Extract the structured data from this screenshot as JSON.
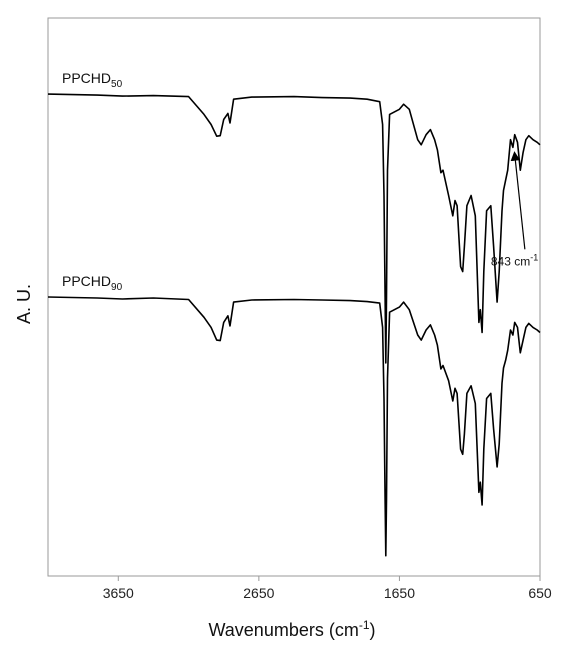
{
  "chart_data": {
    "type": "line",
    "xlabel": "Wavenumbers (cm",
    "xlabel_sup": "-1",
    "xlabel_tail": ")",
    "ylabel": "A. U.",
    "xlim": [
      4150,
      650
    ],
    "x_reversed": true,
    "ylim": [
      -0.55,
      0.55
    ],
    "grid": false,
    "legend": "none",
    "line_color": "#000000",
    "xticks": [
      3650,
      2650,
      1650,
      650
    ],
    "xtick_labels": [
      "3650",
      "2650",
      "1650",
      "650"
    ],
    "series": [
      {
        "name_main": "PPCHD",
        "name_sub": "50",
        "points": [
          [
            4150,
            0.4
          ],
          [
            3800,
            0.398
          ],
          [
            3620,
            0.396
          ],
          [
            3400,
            0.397
          ],
          [
            3150,
            0.395
          ],
          [
            3040,
            0.36
          ],
          [
            2990,
            0.34
          ],
          [
            2950,
            0.317
          ],
          [
            2925,
            0.318
          ],
          [
            2900,
            0.35
          ],
          [
            2870,
            0.362
          ],
          [
            2855,
            0.343
          ],
          [
            2830,
            0.39
          ],
          [
            2700,
            0.394
          ],
          [
            2400,
            0.395
          ],
          [
            2200,
            0.393
          ],
          [
            2000,
            0.392
          ],
          [
            1880,
            0.39
          ],
          [
            1790,
            0.385
          ],
          [
            1770,
            0.34
          ],
          [
            1760,
            0.2
          ],
          [
            1752,
            0.0
          ],
          [
            1747,
            -0.13
          ],
          [
            1742,
            0.0
          ],
          [
            1735,
            0.25
          ],
          [
            1720,
            0.36
          ],
          [
            1650,
            0.37
          ],
          [
            1620,
            0.38
          ],
          [
            1580,
            0.37
          ],
          [
            1520,
            0.31
          ],
          [
            1495,
            0.3
          ],
          [
            1460,
            0.32
          ],
          [
            1430,
            0.33
          ],
          [
            1400,
            0.31
          ],
          [
            1380,
            0.29
          ],
          [
            1355,
            0.245
          ],
          [
            1340,
            0.25
          ],
          [
            1300,
            0.2
          ],
          [
            1270,
            0.16
          ],
          [
            1255,
            0.19
          ],
          [
            1240,
            0.18
          ],
          [
            1215,
            0.06
          ],
          [
            1200,
            0.05
          ],
          [
            1188,
            0.1
          ],
          [
            1170,
            0.18
          ],
          [
            1140,
            0.2
          ],
          [
            1110,
            0.16
          ],
          [
            1085,
            -0.05
          ],
          [
            1075,
            -0.025
          ],
          [
            1062,
            -0.07
          ],
          [
            1050,
            0.05
          ],
          [
            1030,
            0.17
          ],
          [
            1000,
            0.18
          ],
          [
            980,
            0.1
          ],
          [
            955,
            -0.01
          ],
          [
            940,
            0.05
          ],
          [
            920,
            0.17
          ],
          [
            910,
            0.21
          ],
          [
            895,
            0.23
          ],
          [
            880,
            0.25
          ],
          [
            860,
            0.31
          ],
          [
            843,
            0.295
          ],
          [
            830,
            0.32
          ],
          [
            810,
            0.305
          ],
          [
            790,
            0.25
          ],
          [
            770,
            0.285
          ],
          [
            750,
            0.31
          ],
          [
            730,
            0.318
          ],
          [
            700,
            0.31
          ],
          [
            670,
            0.305
          ],
          [
            650,
            0.3
          ]
        ]
      },
      {
        "name_main": "PPCHD",
        "name_sub": "90",
        "points": [
          [
            4150,
            0.0
          ],
          [
            3800,
            -0.002
          ],
          [
            3620,
            -0.004
          ],
          [
            3400,
            -0.002
          ],
          [
            3150,
            -0.005
          ],
          [
            3040,
            -0.04
          ],
          [
            2990,
            -0.06
          ],
          [
            2950,
            -0.085
          ],
          [
            2925,
            -0.086
          ],
          [
            2900,
            -0.05
          ],
          [
            2870,
            -0.037
          ],
          [
            2855,
            -0.057
          ],
          [
            2830,
            -0.01
          ],
          [
            2700,
            -0.006
          ],
          [
            2400,
            -0.005
          ],
          [
            2200,
            -0.006
          ],
          [
            2000,
            -0.007
          ],
          [
            1880,
            -0.009
          ],
          [
            1790,
            -0.012
          ],
          [
            1770,
            -0.06
          ],
          [
            1760,
            -0.2
          ],
          [
            1752,
            -0.4
          ],
          [
            1747,
            -0.51
          ],
          [
            1742,
            -0.4
          ],
          [
            1735,
            -0.16
          ],
          [
            1720,
            -0.03
          ],
          [
            1650,
            -0.02
          ],
          [
            1620,
            -0.01
          ],
          [
            1580,
            -0.025
          ],
          [
            1520,
            -0.075
          ],
          [
            1495,
            -0.085
          ],
          [
            1460,
            -0.065
          ],
          [
            1430,
            -0.055
          ],
          [
            1400,
            -0.075
          ],
          [
            1380,
            -0.095
          ],
          [
            1355,
            -0.142
          ],
          [
            1340,
            -0.135
          ],
          [
            1300,
            -0.165
          ],
          [
            1270,
            -0.205
          ],
          [
            1255,
            -0.18
          ],
          [
            1240,
            -0.19
          ],
          [
            1215,
            -0.3
          ],
          [
            1200,
            -0.31
          ],
          [
            1188,
            -0.27
          ],
          [
            1170,
            -0.19
          ],
          [
            1140,
            -0.175
          ],
          [
            1110,
            -0.21
          ],
          [
            1085,
            -0.385
          ],
          [
            1075,
            -0.365
          ],
          [
            1062,
            -0.41
          ],
          [
            1050,
            -0.3
          ],
          [
            1030,
            -0.2
          ],
          [
            1000,
            -0.19
          ],
          [
            980,
            -0.26
          ],
          [
            955,
            -0.335
          ],
          [
            940,
            -0.29
          ],
          [
            920,
            -0.17
          ],
          [
            910,
            -0.14
          ],
          [
            895,
            -0.125
          ],
          [
            880,
            -0.105
          ],
          [
            860,
            -0.065
          ],
          [
            843,
            -0.075
          ],
          [
            830,
            -0.05
          ],
          [
            810,
            -0.06
          ],
          [
            790,
            -0.11
          ],
          [
            770,
            -0.085
          ],
          [
            750,
            -0.06
          ],
          [
            730,
            -0.052
          ],
          [
            700,
            -0.06
          ],
          [
            670,
            -0.065
          ],
          [
            650,
            -0.07
          ]
        ]
      }
    ],
    "annotations": [
      {
        "text_main": "843 cm",
        "text_sup": "-1",
        "x": 843,
        "y_start": 0.09,
        "y_end": 0.29
      }
    ]
  }
}
